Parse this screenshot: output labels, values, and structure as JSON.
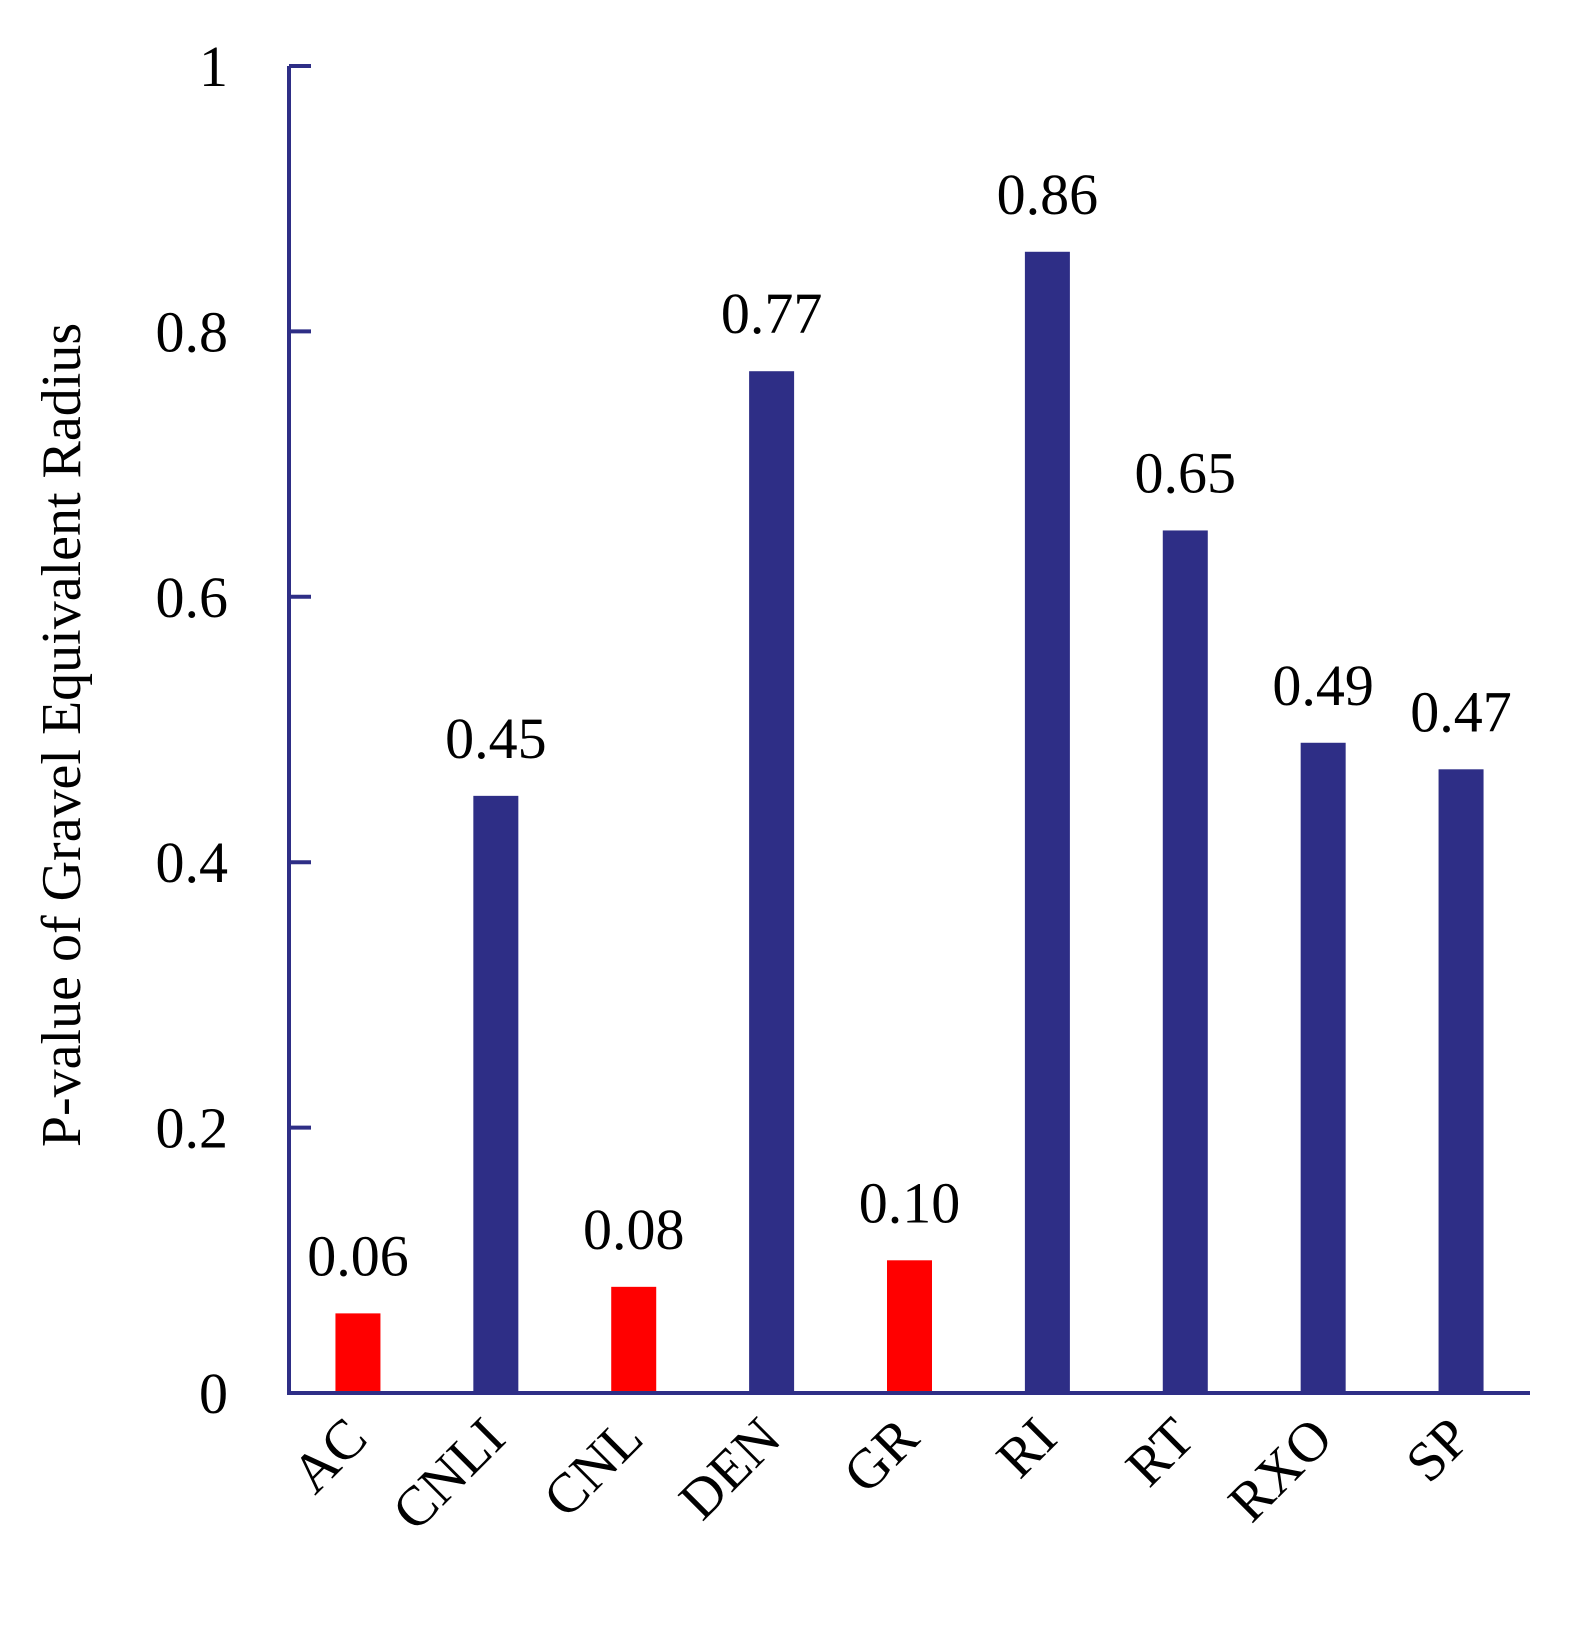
{
  "chart_data": {
    "type": "bar",
    "title": "",
    "xlabel": "",
    "ylabel": "P-value of Gravel Equivalent Radius",
    "ylim": [
      0,
      1
    ],
    "yticks": [
      0,
      0.2,
      0.4,
      0.6,
      0.8,
      1
    ],
    "ytick_labels": [
      "0",
      "0.2",
      "0.4",
      "0.6",
      "0.8",
      "1"
    ],
    "categories": [
      "AC",
      "CNLI",
      "CNL",
      "DEN",
      "GR",
      "RI",
      "RT",
      "RXO",
      "SP"
    ],
    "values": [
      0.06,
      0.45,
      0.08,
      0.77,
      0.1,
      0.86,
      0.65,
      0.49,
      0.47
    ],
    "value_labels": [
      "0.06",
      "0.45",
      "0.08",
      "0.77",
      "0.10",
      "0.86",
      "0.65",
      "0.49",
      "0.47"
    ],
    "bar_colors": [
      "#ff0000",
      "#2e2e86",
      "#ff0000",
      "#2e2e86",
      "#ff0000",
      "#2e2e86",
      "#2e2e86",
      "#2e2e86",
      "#2e2e86"
    ],
    "axis_color": "#2e2e86",
    "grid": false,
    "legend": "none"
  }
}
